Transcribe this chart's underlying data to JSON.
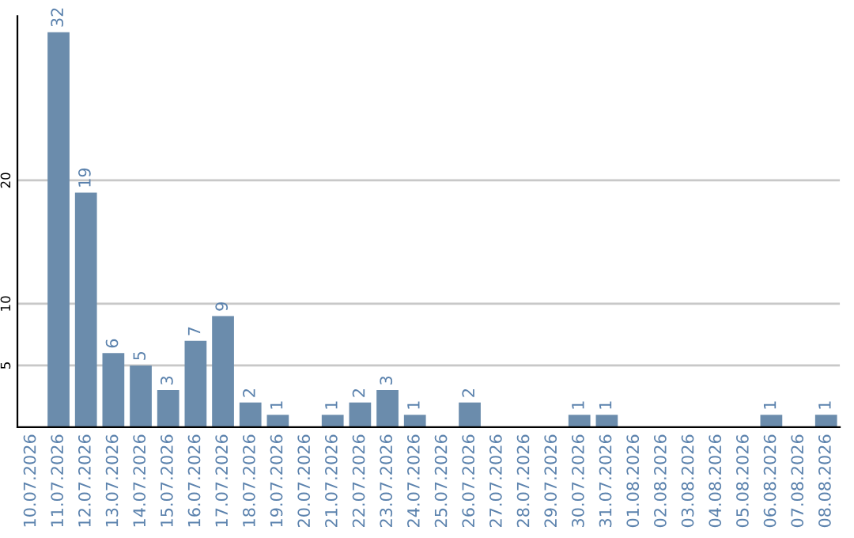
{
  "chart_data": {
    "type": "bar",
    "categories": [
      "10.07.2026",
      "11.07.2026",
      "12.07.2026",
      "13.07.2026",
      "14.07.2026",
      "15.07.2026",
      "16.07.2026",
      "17.07.2026",
      "18.07.2026",
      "19.07.2026",
      "20.07.2026",
      "21.07.2026",
      "22.07.2026",
      "23.07.2026",
      "24.07.2026",
      "25.07.2026",
      "26.07.2026",
      "27.07.2026",
      "28.07.2026",
      "29.07.2026",
      "30.07.2026",
      "31.07.2026",
      "01.08.2026",
      "02.08.2026",
      "03.08.2026",
      "04.08.2026",
      "05.08.2026",
      "06.08.2026",
      "07.08.2026",
      "08.08.2026"
    ],
    "values": [
      0,
      32,
      19,
      6,
      5,
      3,
      7,
      9,
      2,
      1,
      0,
      1,
      2,
      3,
      1,
      0,
      2,
      0,
      0,
      0,
      1,
      1,
      0,
      0,
      0,
      0,
      0,
      1,
      0,
      1
    ],
    "value_labels": [
      null,
      "32",
      "19",
      "6",
      "5",
      "3",
      "7",
      "9",
      "2",
      "1",
      null,
      "1",
      "2",
      "3",
      "1",
      null,
      "2",
      null,
      null,
      null,
      "1",
      "1",
      null,
      null,
      null,
      null,
      null,
      "1",
      null,
      "1"
    ],
    "color": "#6b8cac",
    "ylim": [
      0,
      33.3
    ],
    "yticks": [
      5,
      10,
      20
    ],
    "grid": "y"
  }
}
